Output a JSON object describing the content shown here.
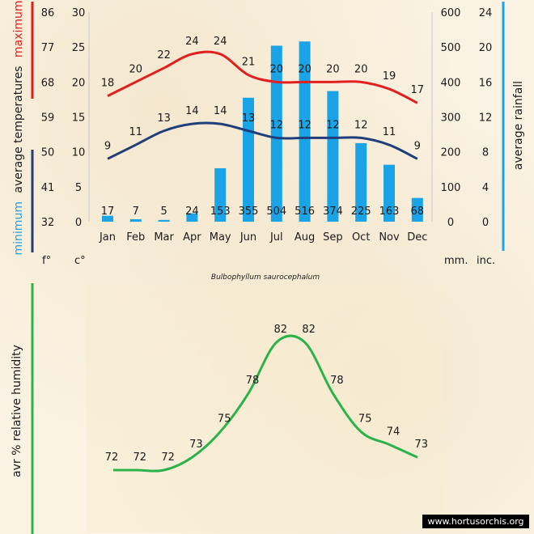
{
  "chart_data": [
    {
      "type": "bar+line",
      "categories": [
        "Jan",
        "Feb",
        "Mar",
        "Apr",
        "May",
        "Jun",
        "Jul",
        "Aug",
        "Sep",
        "Oct",
        "Nov",
        "Dec"
      ],
      "series": [
        {
          "name": "maximum",
          "type": "line",
          "color": "#e21f1f",
          "values": [
            18,
            20,
            22,
            24,
            24,
            21,
            20,
            20,
            20,
            20,
            19,
            17
          ]
        },
        {
          "name": "minimum",
          "type": "line",
          "color": "#1f3f7a",
          "values": [
            9,
            11,
            13,
            14,
            14,
            13,
            12,
            12,
            12,
            12,
            11,
            9
          ]
        },
        {
          "name": "rainfall",
          "type": "bar",
          "color": "#1aa3e6",
          "values": [
            17,
            7,
            5,
            24,
            153,
            355,
            504,
            516,
            374,
            225,
            163,
            68
          ]
        }
      ],
      "y_left_c": {
        "ticks": [
          "30",
          "25",
          "20",
          "15",
          "10",
          "5",
          "0"
        ],
        "range": [
          0,
          30
        ]
      },
      "y_left_f": {
        "ticks": [
          "86",
          "77",
          "68",
          "59",
          "50",
          "41",
          "32"
        ]
      },
      "y_right_mm": {
        "ticks": [
          "600",
          "500",
          "400",
          "300",
          "200",
          "100",
          "0"
        ],
        "range": [
          0,
          600
        ]
      },
      "y_right_in": {
        "ticks": [
          "24",
          "20",
          "16",
          "12",
          "8",
          "4",
          "0"
        ]
      },
      "left_label": {
        "minimum": "minimum",
        "average_temperatures": "average temperatures",
        "maximum": "maximum"
      },
      "right_label": "average rainfall",
      "unit_f": "f°",
      "unit_c": "c°",
      "unit_mm": "mm.",
      "unit_in": "inc.",
      "grid": false
    },
    {
      "type": "line",
      "categories": [
        "Jan",
        "Feb",
        "Mar",
        "Apr",
        "May",
        "Jun",
        "Jul",
        "Aug",
        "Sep",
        "Oct",
        "Nov",
        "Dec"
      ],
      "series": [
        {
          "name": "avr % relative humidity",
          "color": "#2bb34a",
          "values": [
            72,
            72,
            72,
            73,
            75,
            78,
            82,
            82,
            78,
            75,
            74,
            73
          ]
        }
      ],
      "ylabel": "avr % relative humidity",
      "grid": false
    }
  ],
  "species": "Bulbophyllum saurocephalum",
  "credit": "www.hortusorchis.org",
  "colors": {
    "red": "#e21f1f",
    "navy": "#1f3f7a",
    "blue": "#1aa3e6",
    "green": "#2bb34a"
  }
}
